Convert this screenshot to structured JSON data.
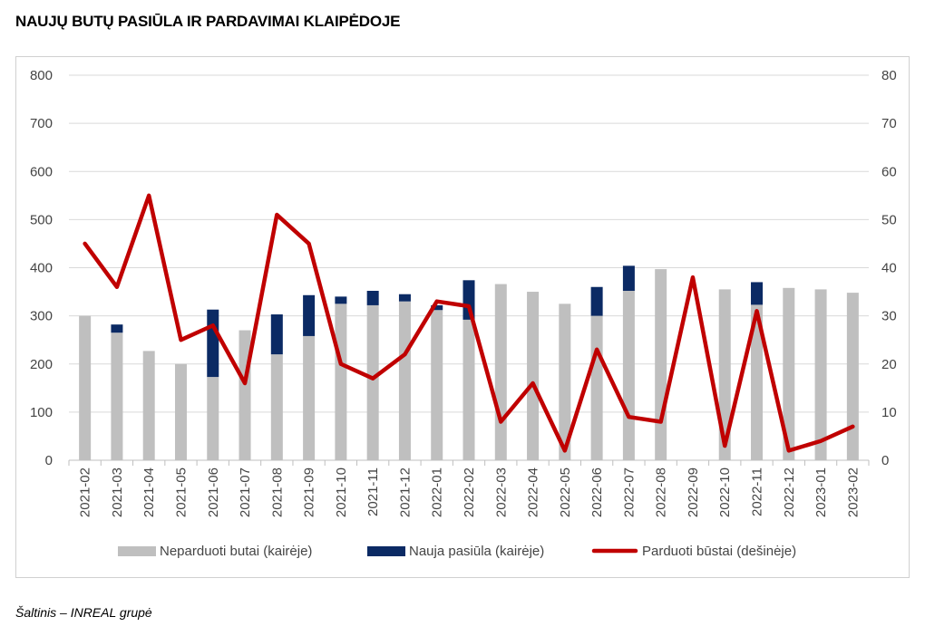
{
  "title": "NAUJŲ BUTŲ PASIŪLA IR PARDAVIMAI KLAIPĖDOJE",
  "source": "Šaltinis – INREAL grupė",
  "chart_data": {
    "type": "bar",
    "stacked": true,
    "categories": [
      "2021-02",
      "2021-03",
      "2021-04",
      "2021-05",
      "2021-06",
      "2021-07",
      "2021-08",
      "2021-09",
      "2021-10",
      "2021-11",
      "2021-12",
      "2022-01",
      "2022-02",
      "2022-03",
      "2022-04",
      "2022-05",
      "2022-06",
      "2022-07",
      "2022-08",
      "2022-09",
      "2022-10",
      "2022-11",
      "2022-12",
      "2023-01",
      "2023-02"
    ],
    "series": [
      {
        "name": "Neparduoti butai (kairėje)",
        "type": "bar",
        "axis": "left",
        "color": "#bfbfbf",
        "values": [
          300,
          265,
          227,
          200,
          173,
          270,
          220,
          258,
          325,
          322,
          330,
          312,
          292,
          366,
          350,
          325,
          300,
          352,
          397,
          0,
          355,
          323,
          358,
          355,
          348
        ]
      },
      {
        "name": "Nauja pasiūla (kairėje)",
        "type": "bar",
        "axis": "left",
        "color": "#0b2a64",
        "values": [
          0,
          17,
          0,
          0,
          140,
          0,
          83,
          85,
          15,
          30,
          15,
          10,
          82,
          0,
          0,
          0,
          60,
          52,
          0,
          0,
          0,
          47,
          0,
          0,
          0
        ]
      },
      {
        "name": "Parduoti būstai (dešinėje)",
        "type": "line",
        "axis": "right",
        "color": "#c00000",
        "values": [
          45,
          36,
          55,
          25,
          28,
          16,
          51,
          45,
          20,
          17,
          22,
          33,
          32,
          8,
          16,
          2,
          23,
          9,
          8,
          38,
          3,
          31,
          2,
          4,
          7
        ]
      }
    ],
    "ylim_left": [
      0,
      800
    ],
    "ylim_right": [
      0,
      80
    ],
    "yticks_left": [
      "0",
      "100",
      "200",
      "300",
      "400",
      "500",
      "600",
      "700",
      "800"
    ],
    "yticks_right": [
      "0",
      "10",
      "20",
      "30",
      "40",
      "50",
      "60",
      "70",
      "80"
    ],
    "grid": true,
    "legend_position": "bottom"
  }
}
